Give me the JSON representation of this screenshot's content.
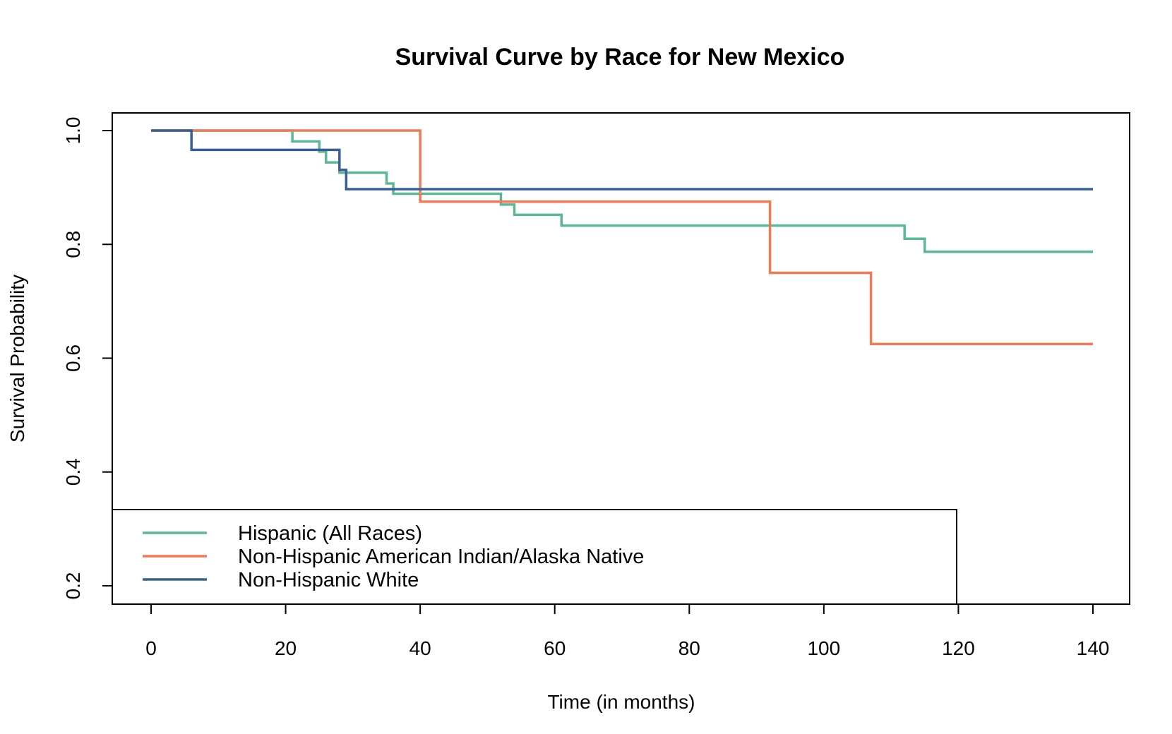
{
  "chart_data": {
    "type": "line",
    "step": true,
    "title": "Survival Curve by Race for New Mexico",
    "xlabel": "Time (in months)",
    "ylabel": "Survival Probability",
    "xlim": [
      0,
      140
    ],
    "ylim": [
      0.2,
      1.0
    ],
    "xticks": [
      "0",
      "20",
      "40",
      "60",
      "80",
      "100",
      "120",
      "140"
    ],
    "yticks": [
      "0.2",
      "0.4",
      "0.6",
      "0.8",
      "1.0"
    ],
    "grid": false,
    "legend_position": "bottom-left",
    "series": [
      {
        "name": "Hispanic (All Races)",
        "color": "#5bb893",
        "x": [
          0,
          21,
          25,
          26,
          28,
          35,
          36,
          52,
          54,
          61,
          112,
          115,
          140
        ],
        "y": [
          1.0,
          0.981,
          0.963,
          0.944,
          0.926,
          0.907,
          0.889,
          0.87,
          0.852,
          0.833,
          0.81,
          0.787,
          0.787
        ]
      },
      {
        "name": "Non-Hispanic American Indian/Alaska Native",
        "color": "#f07a54",
        "x": [
          0,
          40,
          92,
          107,
          140
        ],
        "y": [
          1.0,
          0.875,
          0.75,
          0.625,
          0.625
        ]
      },
      {
        "name": "Non-Hispanic White",
        "color": "#3a5f96",
        "x": [
          0,
          6,
          28,
          29,
          140
        ],
        "y": [
          1.0,
          0.966,
          0.931,
          0.897,
          0.897
        ]
      }
    ]
  }
}
